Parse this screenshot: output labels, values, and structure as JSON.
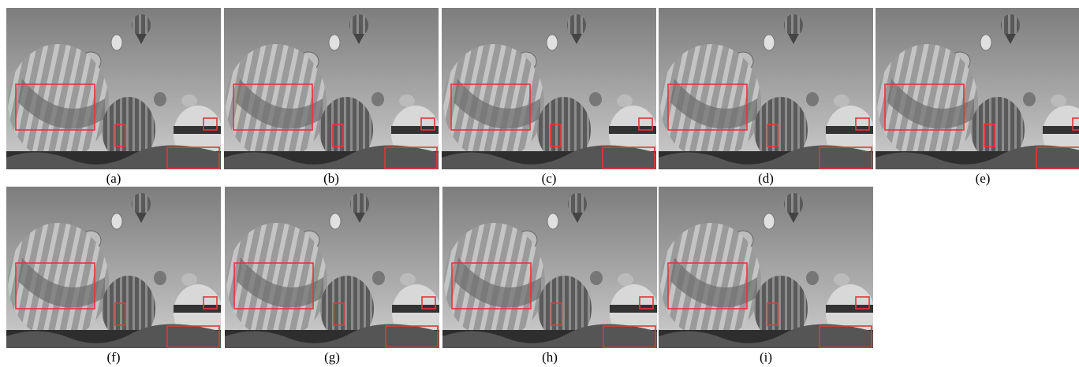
{
  "figure": {
    "panels": [
      {
        "caption": "(a)"
      },
      {
        "caption": "(b)"
      },
      {
        "caption": "(c)"
      },
      {
        "caption": "(d)"
      },
      {
        "caption": "(e)"
      },
      {
        "caption": "(f)"
      },
      {
        "caption": "(g)"
      },
      {
        "caption": "(h)"
      },
      {
        "caption": "(i)"
      }
    ]
  }
}
